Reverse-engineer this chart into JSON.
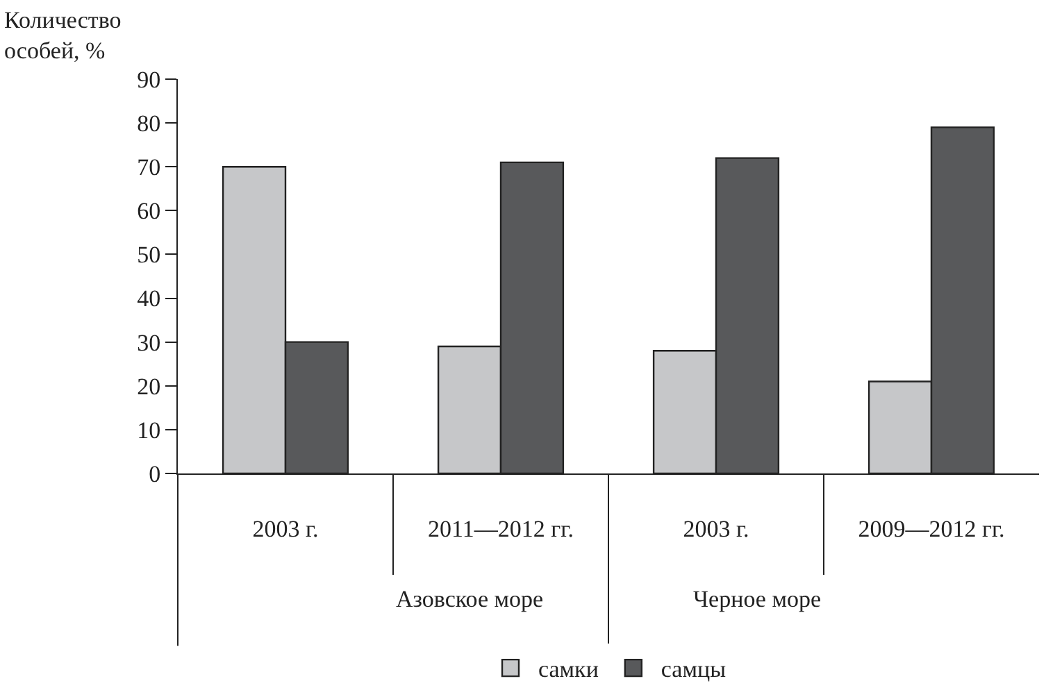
{
  "chart_data": {
    "type": "bar",
    "ylabel": "Количество особей, %",
    "categories": [
      "2003 г.",
      "2011—2012 гг.",
      "2003 г.",
      "2009—2012 гг."
    ],
    "series": [
      {
        "name": "самки",
        "color": "#c6c7c9",
        "values": [
          70,
          29,
          28,
          21
        ]
      },
      {
        "name": "самцы",
        "color": "#58595b",
        "values": [
          30,
          71,
          72,
          79
        ]
      }
    ],
    "annotations": [
      "Азовское море",
      "Черное море"
    ],
    "ylim": [
      0,
      90
    ],
    "yticks": [
      0,
      10,
      20,
      30,
      40,
      50,
      60,
      70,
      80,
      90
    ],
    "legend": "bottom"
  }
}
